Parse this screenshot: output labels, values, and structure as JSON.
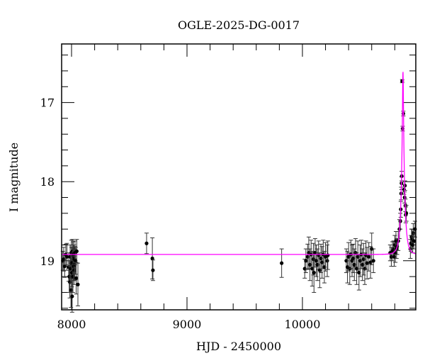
{
  "chart_data": {
    "type": "scatter",
    "title": "OGLE-2025-DG-0017",
    "xlabel": "HJD - 2450000",
    "ylabel": "I magnitude",
    "xlim": [
      7914,
      10982
    ],
    "ylim": [
      19.62,
      16.26
    ],
    "y_inverted": true,
    "x_major_ticks": [
      8000,
      9000,
      10000
    ],
    "x_tick_labels": [
      "8000",
      "9000",
      "10000"
    ],
    "x_minor_step": 200,
    "y_major_ticks": [
      17,
      18,
      19
    ],
    "y_tick_labels": [
      "17",
      "18",
      "19"
    ],
    "y_minor_step": 0.2,
    "grid": false,
    "colors": {
      "points": "#000000",
      "model": "#ff00ff"
    },
    "model": {
      "baseline_mag": 18.92,
      "peak_hjd": 10871,
      "peak_mag": 16.6,
      "tE_days": 30
    },
    "points": [
      [
        7925,
        19.0,
        0.12
      ],
      [
        7932,
        18.98,
        0.15
      ],
      [
        7940,
        19.07,
        0.14
      ],
      [
        7950,
        18.92,
        0.13
      ],
      [
        7960,
        18.95,
        0.17
      ],
      [
        7975,
        19.08,
        0.18
      ],
      [
        7980,
        19.2,
        0.2
      ],
      [
        7985,
        19.27,
        0.2
      ],
      [
        7988,
        18.95,
        0.15
      ],
      [
        7992,
        19.1,
        0.18
      ],
      [
        7995,
        19.37,
        0.22
      ],
      [
        7998,
        18.9,
        0.16
      ],
      [
        8000,
        19.03,
        0.2
      ],
      [
        8003,
        19.15,
        0.18
      ],
      [
        8005,
        19.45,
        0.2
      ],
      [
        8008,
        18.88,
        0.15
      ],
      [
        8010,
        19.02,
        0.18
      ],
      [
        8012,
        19.2,
        0.2
      ],
      [
        8015,
        18.92,
        0.16
      ],
      [
        8018,
        19.07,
        0.18
      ],
      [
        8020,
        18.95,
        0.15
      ],
      [
        8022,
        19.12,
        0.18
      ],
      [
        8025,
        18.98,
        0.16
      ],
      [
        8028,
        19.05,
        0.2
      ],
      [
        8030,
        18.9,
        0.15
      ],
      [
        8035,
        19.0,
        0.17
      ],
      [
        8040,
        19.22,
        0.2
      ],
      [
        8045,
        18.88,
        0.15
      ],
      [
        8055,
        19.3,
        0.27
      ],
      [
        8650,
        18.78,
        0.13
      ],
      [
        8700,
        18.97,
        0.26
      ],
      [
        8705,
        19.12,
        0.13
      ],
      [
        9820,
        19.03,
        0.18
      ],
      [
        10020,
        19.1,
        0.12
      ],
      [
        10030,
        19.0,
        0.15
      ],
      [
        10045,
        18.95,
        0.16
      ],
      [
        10055,
        18.9,
        0.2
      ],
      [
        10065,
        19.05,
        0.2
      ],
      [
        10075,
        18.92,
        0.18
      ],
      [
        10085,
        19.1,
        0.22
      ],
      [
        10095,
        18.98,
        0.2
      ],
      [
        10100,
        19.15,
        0.25
      ],
      [
        10110,
        18.9,
        0.18
      ],
      [
        10120,
        19.0,
        0.2
      ],
      [
        10130,
        19.05,
        0.2
      ],
      [
        10140,
        18.93,
        0.18
      ],
      [
        10150,
        19.12,
        0.22
      ],
      [
        10160,
        18.97,
        0.18
      ],
      [
        10170,
        19.02,
        0.2
      ],
      [
        10180,
        18.92,
        0.18
      ],
      [
        10190,
        19.08,
        0.2
      ],
      [
        10200,
        18.95,
        0.18
      ],
      [
        10215,
        19.0,
        0.2
      ],
      [
        10220,
        18.93,
        0.18
      ],
      [
        10380,
        19.0,
        0.15
      ],
      [
        10390,
        19.08,
        0.2
      ],
      [
        10400,
        18.95,
        0.18
      ],
      [
        10410,
        19.1,
        0.2
      ],
      [
        10420,
        18.92,
        0.18
      ],
      [
        10430,
        19.0,
        0.2
      ],
      [
        10440,
        18.97,
        0.18
      ],
      [
        10450,
        19.05,
        0.2
      ],
      [
        10460,
        18.9,
        0.18
      ],
      [
        10470,
        19.1,
        0.2
      ],
      [
        10480,
        18.95,
        0.2
      ],
      [
        10490,
        19.15,
        0.22
      ],
      [
        10500,
        19.0,
        0.2
      ],
      [
        10510,
        18.92,
        0.18
      ],
      [
        10520,
        19.05,
        0.2
      ],
      [
        10530,
        18.98,
        0.2
      ],
      [
        10540,
        19.1,
        0.2
      ],
      [
        10550,
        18.93,
        0.18
      ],
      [
        10560,
        19.03,
        0.2
      ],
      [
        10575,
        18.95,
        0.18
      ],
      [
        10590,
        19.02,
        0.2
      ],
      [
        10600,
        18.85,
        0.2
      ],
      [
        10615,
        19.0,
        0.15
      ],
      [
        10760,
        18.9,
        0.1
      ],
      [
        10770,
        18.95,
        0.12
      ],
      [
        10780,
        18.88,
        0.12
      ],
      [
        10790,
        18.85,
        0.1
      ],
      [
        10795,
        18.95,
        0.12
      ],
      [
        10800,
        18.8,
        0.12
      ],
      [
        10805,
        18.9,
        0.12
      ],
      [
        10810,
        18.75,
        0.12
      ],
      [
        10815,
        18.85,
        0.12
      ],
      [
        10820,
        18.82,
        0.1
      ],
      [
        10830,
        18.75,
        0.12
      ],
      [
        10840,
        18.6,
        0.12
      ],
      [
        10848,
        18.5,
        0.1
      ],
      [
        10852,
        18.35,
        0.1
      ],
      [
        10855,
        18.15,
        0.08
      ],
      [
        10858,
        18.02,
        0.08
      ],
      [
        10860,
        17.93,
        0.06
      ],
      [
        10864,
        16.73,
        0.02
      ],
      [
        10868,
        17.33,
        0.03
      ],
      [
        10874,
        17.14,
        0.03
      ],
      [
        10880,
        18.1,
        0.06
      ],
      [
        10885,
        18.2,
        0.07
      ],
      [
        10888,
        18.05,
        0.06
      ],
      [
        10892,
        18.3,
        0.08
      ],
      [
        10895,
        18.42,
        0.1
      ],
      [
        10900,
        18.4,
        0.1
      ],
      [
        10935,
        18.85,
        0.12
      ],
      [
        10940,
        18.78,
        0.1
      ],
      [
        10945,
        18.7,
        0.1
      ],
      [
        10950,
        18.72,
        0.12
      ],
      [
        10955,
        18.8,
        0.1
      ],
      [
        10960,
        18.65,
        0.12
      ],
      [
        10965,
        18.75,
        0.1
      ],
      [
        10975,
        18.6,
        0.1
      ]
    ]
  }
}
